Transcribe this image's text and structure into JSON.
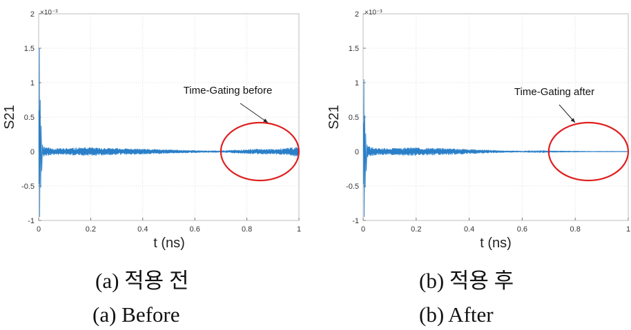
{
  "figure": {
    "captions": [
      {
        "korean": "(a) 적용 전",
        "english": "(a) Before"
      },
      {
        "korean": "(b) 적용 후",
        "english": "(b) After"
      }
    ]
  },
  "chart_data": [
    {
      "type": "line",
      "panel": "a",
      "title": "",
      "xlabel": "t (ns)",
      "ylabel": "S21",
      "y_exponent": "×10⁻³",
      "xlim": [
        0,
        1
      ],
      "ylim": [
        -1,
        2
      ],
      "xticks": [
        0,
        0.2,
        0.4,
        0.6,
        0.8,
        1
      ],
      "xtick_labels": [
        "0",
        "0.2",
        "0.4",
        "0.6",
        "0.8",
        "1"
      ],
      "yticks": [
        -1,
        -0.5,
        0,
        0.5,
        1,
        1.5,
        2
      ],
      "ytick_labels": [
        "-1",
        "-0.5",
        "0",
        "0.5",
        "1",
        "1.5",
        "2"
      ],
      "grid": true,
      "series": [
        {
          "name": "S21",
          "color": "#2a7fc8",
          "initial_spike": {
            "t": 0.005,
            "max": 1.5,
            "min": -0.95
          },
          "envelope_t": [
            0,
            0.02,
            0.05,
            0.1,
            0.15,
            0.2,
            0.25,
            0.3,
            0.35,
            0.4,
            0.45,
            0.5,
            0.55,
            0.6,
            0.65,
            0.7,
            0.75,
            0.8,
            0.85,
            0.9,
            0.95,
            1.0
          ],
          "envelope_amp": [
            0.12,
            0.08,
            0.05,
            0.05,
            0.06,
            0.06,
            0.055,
            0.05,
            0.045,
            0.04,
            0.035,
            0.03,
            0.025,
            0.02,
            0.015,
            0.015,
            0.025,
            0.035,
            0.04,
            0.04,
            0.05,
            0.08
          ]
        }
      ],
      "annotation": {
        "text": "Time-Gating before",
        "target_t": 0.85,
        "target_y": 0.0
      },
      "ellipse": {
        "center_t": 0.85,
        "center_y": 0.0,
        "semi_t": 0.15,
        "semi_y": 0.42,
        "color": "#e01e1e"
      }
    },
    {
      "type": "line",
      "panel": "b",
      "title": "",
      "xlabel": "t (ns)",
      "ylabel": "S21",
      "y_exponent": "×10⁻³",
      "xlim": [
        0,
        1
      ],
      "ylim": [
        -1,
        2
      ],
      "xticks": [
        0,
        0.2,
        0.4,
        0.6,
        0.8,
        1
      ],
      "xtick_labels": [
        "0",
        "0.2",
        "0.4",
        "0.6",
        "0.8",
        "1"
      ],
      "yticks": [
        -1,
        -0.5,
        0,
        0.5,
        1,
        1.5,
        2
      ],
      "ytick_labels": [
        "-1",
        "-0.5",
        "0",
        "0.5",
        "1",
        "1.5",
        "2"
      ],
      "grid": true,
      "series": [
        {
          "name": "S21",
          "color": "#2a7fc8",
          "initial_spike": {
            "t": 0.005,
            "max": 1.05,
            "min": -0.95
          },
          "envelope_t": [
            0,
            0.02,
            0.05,
            0.1,
            0.15,
            0.2,
            0.25,
            0.3,
            0.35,
            0.4,
            0.45,
            0.5,
            0.55,
            0.6,
            0.65,
            0.7,
            0.75,
            0.8,
            0.85,
            0.9,
            0.95,
            1.0
          ],
          "envelope_amp": [
            0.12,
            0.08,
            0.05,
            0.05,
            0.06,
            0.06,
            0.055,
            0.05,
            0.045,
            0.035,
            0.03,
            0.02,
            0.015,
            0.01,
            0.008,
            0.005,
            0.004,
            0.003,
            0.002,
            0.002,
            0.002,
            0.002
          ]
        }
      ],
      "annotation": {
        "text": "Time-Gating after",
        "target_t": 0.82,
        "target_y": 0.0
      },
      "ellipse": {
        "center_t": 0.85,
        "center_y": 0.0,
        "semi_t": 0.15,
        "semi_y": 0.42,
        "color": "#e01e1e"
      }
    }
  ]
}
